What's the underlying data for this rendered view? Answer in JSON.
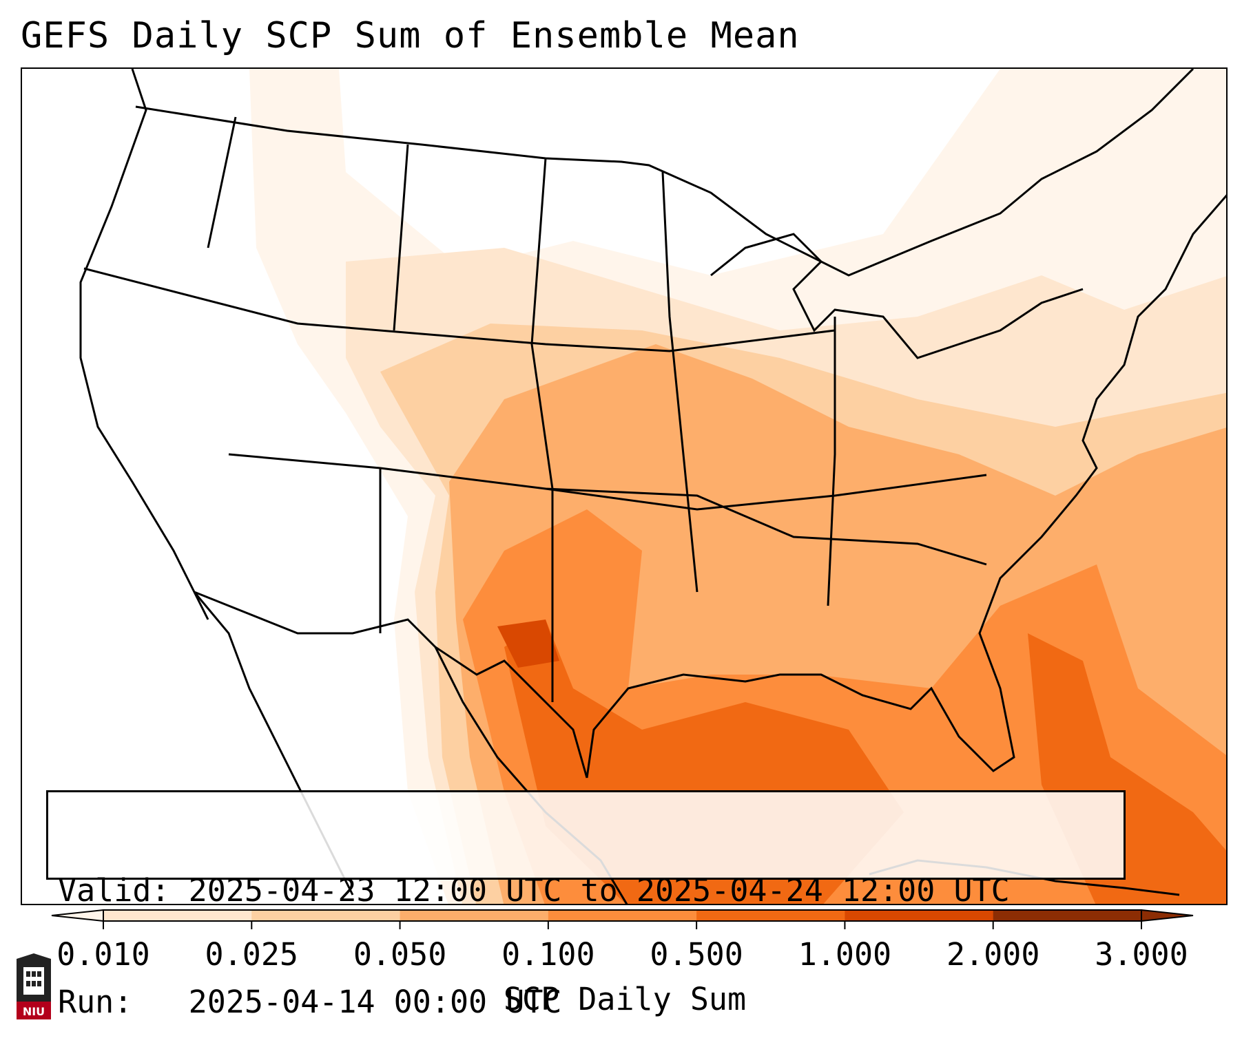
{
  "title": "GEFS Daily SCP Sum of Ensemble Mean",
  "info": {
    "valid_label": "Valid:",
    "valid_value": "2025-04-23 12:00 UTC to 2025-04-24 12:00 UTC",
    "run_label": "Run:",
    "run_value": "2025-04-14 00:00 UTC"
  },
  "colorbar": {
    "label": "SCP Daily Sum",
    "ticks": [
      "0.010",
      "0.025",
      "0.050",
      "0.100",
      "0.500",
      "1.000",
      "2.000",
      "3.000"
    ],
    "colors": [
      "#fff5eb",
      "#fee6ce",
      "#fdd0a2",
      "#fdae6b",
      "#fd8d3c",
      "#f16913",
      "#d94801",
      "#8c2d04"
    ]
  },
  "logo": {
    "text": "NIU",
    "colors": [
      "#b3001b",
      "#222222"
    ]
  },
  "map": {
    "basemap": "North America (CONUS) with state and country borders",
    "field": "SCP daily sum, ensemble mean",
    "max_region": "West Texas"
  }
}
